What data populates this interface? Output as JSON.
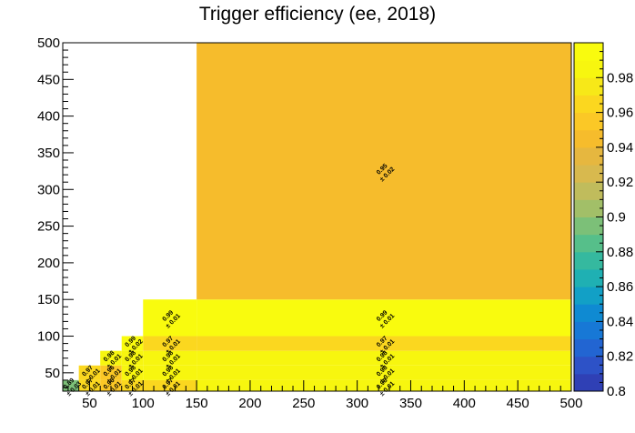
{
  "chart_data": {
    "type": "heatmap",
    "title": "Trigger efficiency (ee, 2018)",
    "xlabel": "",
    "ylabel": "",
    "xlim": [
      25,
      500
    ],
    "ylim": [
      25,
      500
    ],
    "x_ticks": [
      50,
      100,
      150,
      200,
      250,
      300,
      350,
      400,
      450,
      500
    ],
    "y_ticks": [
      50,
      100,
      150,
      200,
      250,
      300,
      350,
      400,
      450,
      500
    ],
    "colorbar": {
      "range": [
        0.8,
        1.0
      ],
      "ticks": [
        0.8,
        0.82,
        0.84,
        0.86,
        0.88,
        0.9,
        0.92,
        0.94,
        0.96,
        0.98
      ],
      "tick_labels": [
        "0.8",
        "0.82",
        "0.84",
        "0.86",
        "0.88",
        "0.9",
        "0.92",
        "0.94",
        "0.96",
        "0.98"
      ],
      "colors": [
        "#2f40b5",
        "#2d52c7",
        "#2265d2",
        "#1778d6",
        "#0f8ad2",
        "#12a0c6",
        "#1fb0b3",
        "#35b99f",
        "#56bf8a",
        "#7cc078",
        "#a2bf68",
        "#c0bc5c",
        "#d8b94e",
        "#e6b73f",
        "#f6bc2c",
        "#fbc826",
        "#fbd71f",
        "#f7e818",
        "#f7f60f",
        "#f9fb0e"
      ]
    },
    "x_edges": [
      25,
      40,
      60,
      80,
      100,
      150,
      500
    ],
    "y_edges": [
      25,
      40,
      60,
      80,
      100,
      150,
      500
    ],
    "cells": [
      {
        "x": [
          25,
          40
        ],
        "y": [
          25,
          40
        ],
        "value": 0.89,
        "label": "0.89",
        "error": "± 0.03"
      },
      {
        "x": [
          40,
          60
        ],
        "y": [
          25,
          40
        ],
        "value": 0.97,
        "label": "0.97",
        "error": "± 0.01"
      },
      {
        "x": [
          40,
          60
        ],
        "y": [
          40,
          60
        ],
        "value": 0.97,
        "label": "0.97",
        "error": "± 0.01"
      },
      {
        "x": [
          60,
          80
        ],
        "y": [
          25,
          40
        ],
        "value": 0.96,
        "label": "0.96",
        "error": "± 0.01"
      },
      {
        "x": [
          60,
          80
        ],
        "y": [
          40,
          60
        ],
        "value": 0.96,
        "label": "0.96",
        "error": "± 0.01"
      },
      {
        "x": [
          60,
          80
        ],
        "y": [
          60,
          80
        ],
        "value": 0.98,
        "label": "0.98",
        "error": "± 0.01"
      },
      {
        "x": [
          80,
          100
        ],
        "y": [
          25,
          40
        ],
        "value": 0.97,
        "label": "0.97",
        "error": "± 0.01"
      },
      {
        "x": [
          80,
          100
        ],
        "y": [
          40,
          60
        ],
        "value": 0.98,
        "label": "0.98",
        "error": "± 0.01"
      },
      {
        "x": [
          80,
          100
        ],
        "y": [
          60,
          80
        ],
        "value": 0.98,
        "label": "0.98",
        "error": "± 0.01"
      },
      {
        "x": [
          80,
          100
        ],
        "y": [
          80,
          100
        ],
        "value": 0.99,
        "label": "0.99",
        "error": "± 0.02"
      },
      {
        "x": [
          100,
          150
        ],
        "y": [
          25,
          40
        ],
        "value": 0.97,
        "label": "0.97",
        "error": "± 0.01"
      },
      {
        "x": [
          100,
          150
        ],
        "y": [
          40,
          60
        ],
        "value": 0.98,
        "label": "0.98",
        "error": "± 0.01"
      },
      {
        "x": [
          100,
          150
        ],
        "y": [
          60,
          80
        ],
        "value": 0.98,
        "label": "0.98",
        "error": "± 0.01"
      },
      {
        "x": [
          100,
          150
        ],
        "y": [
          80,
          100
        ],
        "value": 0.97,
        "label": "0.97",
        "error": "± 0.01"
      },
      {
        "x": [
          100,
          150
        ],
        "y": [
          100,
          150
        ],
        "value": 0.99,
        "label": "0.99",
        "error": "± 0.01"
      },
      {
        "x": [
          150,
          500
        ],
        "y": [
          25,
          40
        ],
        "value": 0.98,
        "label": "0.98",
        "error": "± 0.01"
      },
      {
        "x": [
          150,
          500
        ],
        "y": [
          40,
          60
        ],
        "value": 0.98,
        "label": "0.98",
        "error": "± 0.01"
      },
      {
        "x": [
          150,
          500
        ],
        "y": [
          60,
          80
        ],
        "value": 0.98,
        "label": "0.98",
        "error": "± 0.01"
      },
      {
        "x": [
          150,
          500
        ],
        "y": [
          80,
          100
        ],
        "value": 0.97,
        "label": "0.97",
        "error": "± 0.01"
      },
      {
        "x": [
          150,
          500
        ],
        "y": [
          100,
          150
        ],
        "value": 0.99,
        "label": "0.99",
        "error": "± 0.01"
      },
      {
        "x": [
          150,
          500
        ],
        "y": [
          150,
          500
        ],
        "value": 0.95,
        "label": "0.95",
        "error": "± 0.02"
      }
    ]
  }
}
